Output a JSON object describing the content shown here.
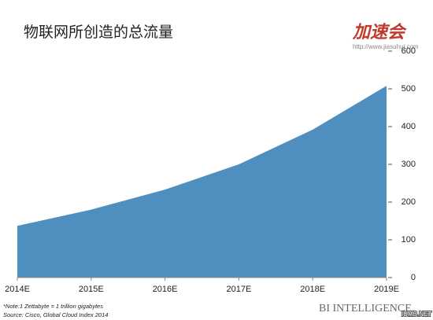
{
  "chart_data": {
    "type": "area",
    "title": "物联网所创造的总流量",
    "logo": "加速会",
    "logo_url": "http://www.jiasuhui.com",
    "categories": [
      "2014E",
      "2015E",
      "2016E",
      "2017E",
      "2018E",
      "2019E"
    ],
    "values": [
      137,
      180,
      233,
      300,
      392,
      508
    ],
    "color": "#4f8fbf",
    "ylim": [
      0,
      600
    ],
    "yticks": [
      0,
      100,
      200,
      300,
      400,
      500,
      600
    ],
    "note": "*Note:1 Zettabyte = 1 trillion gigabytes",
    "source": "Source: Cisco, Global Cloud Index 2014",
    "brand": "BI INTELLIGENCE",
    "watermark": "IUMB.NET"
  }
}
